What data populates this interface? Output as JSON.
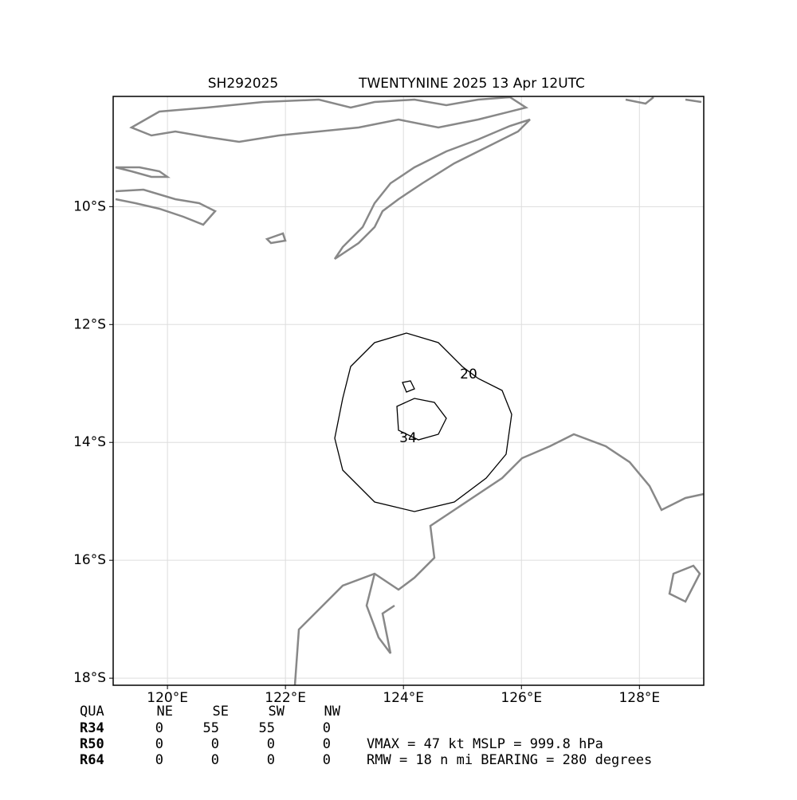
{
  "chart_data": {
    "type": "map",
    "storm_id": "SH292025",
    "title": "TWENTYNINE 2025 13 Apr 12UTC",
    "xlim": [
      119.08,
      129.09
    ],
    "ylim": [
      -18.12,
      -8.13
    ],
    "xticks": [
      {
        "value": 120,
        "label": "120°E"
      },
      {
        "value": 122,
        "label": "122°E"
      },
      {
        "value": 124,
        "label": "124°E"
      },
      {
        "value": 126,
        "label": "126°E"
      },
      {
        "value": 128,
        "label": "128°E"
      }
    ],
    "yticks": [
      {
        "value": -10,
        "label": "10°S"
      },
      {
        "value": -12,
        "label": "12°S"
      },
      {
        "value": -14,
        "label": "14°S"
      },
      {
        "value": -16,
        "label": "16°S"
      },
      {
        "value": -18,
        "label": "18°S"
      }
    ],
    "grid": true,
    "contour_levels": [
      20,
      34
    ],
    "table": {
      "header": [
        "QUA",
        "NE",
        "SE",
        "SW",
        "NW"
      ],
      "rows": [
        [
          "R34",
          0,
          55,
          55,
          0
        ],
        [
          "R50",
          0,
          0,
          0,
          0
        ],
        [
          "R64",
          0,
          0,
          0,
          0
        ]
      ]
    },
    "summary": [
      "VMAX =  47 kt MSLP = 999.8 hPa",
      "RMW =  18 n mi BEARING = 280 degrees"
    ]
  }
}
